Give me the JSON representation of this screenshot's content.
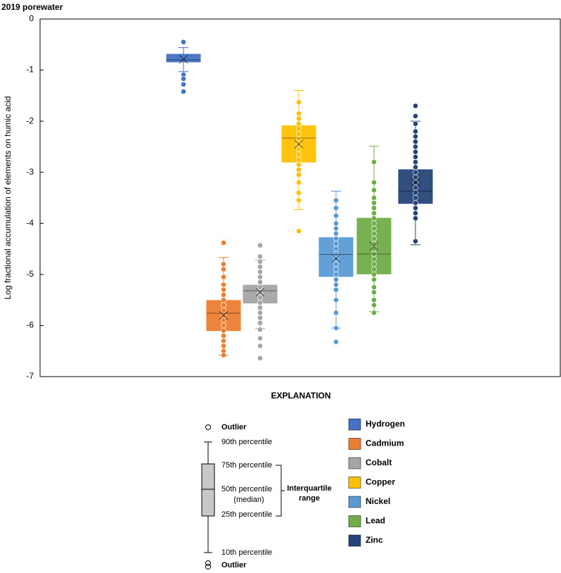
{
  "chart_data": {
    "type": "box",
    "title": "2019 porewater",
    "y_label": "Log fractional accumulation of elements on humic acid",
    "ylim": [
      -7,
      0
    ],
    "yticks": [
      0,
      -1,
      -2,
      -3,
      -4,
      -5,
      -6,
      -7
    ],
    "series": [
      {
        "name": "Hydrogen",
        "color": "#4472c4",
        "whisker_low": -1.03,
        "q1": -0.84,
        "median": -0.8,
        "q3": -0.69,
        "whisker_high": -0.56,
        "mean": -0.79,
        "points": [
          -0.45,
          -1.09,
          -1.17,
          -1.28,
          -1.42
        ]
      },
      {
        "name": "Cadmium",
        "color": "#ed7d31",
        "whisker_low": -6.58,
        "q1": -6.1,
        "median": -5.76,
        "q3": -5.51,
        "whisker_high": -4.67,
        "mean": -5.8,
        "points": [
          -4.38,
          -4.8,
          -4.9,
          -5.05,
          -5.2,
          -5.3,
          -5.4,
          -5.5,
          -5.6,
          -5.7,
          -5.8,
          -5.9,
          -6.0,
          -6.1,
          -6.2,
          -6.3,
          -6.4,
          -6.5,
          -6.58
        ]
      },
      {
        "name": "Cobalt",
        "color": "#a5a5a5",
        "whisker_low": -6.06,
        "q1": -5.56,
        "median": -5.32,
        "q3": -5.21,
        "whisker_high": -4.72,
        "mean": -5.35,
        "points": [
          -4.43,
          -4.65,
          -4.75,
          -4.85,
          -4.95,
          -5.05,
          -5.15,
          -5.25,
          -5.35,
          -5.45,
          -5.55,
          -5.65,
          -5.75,
          -5.85,
          -5.95,
          -6.08,
          -6.25,
          -6.4,
          -6.64
        ]
      },
      {
        "name": "Copper",
        "color": "#ffc000",
        "whisker_low": -3.73,
        "q1": -2.8,
        "median": -2.33,
        "q3": -2.09,
        "whisker_high": -1.4,
        "mean": -2.45,
        "points": [
          -1.63,
          -1.85,
          -1.95,
          -2.05,
          -2.15,
          -2.25,
          -2.35,
          -2.45,
          -2.55,
          -2.65,
          -2.75,
          -2.85,
          -2.95,
          -3.05,
          -3.2,
          -3.4,
          -3.55,
          -4.15
        ]
      },
      {
        "name": "Nickel",
        "color": "#5b9bd5",
        "whisker_low": -6.05,
        "q1": -5.04,
        "median": -4.61,
        "q3": -4.28,
        "whisker_high": -3.37,
        "mean": -4.68,
        "points": [
          -3.55,
          -3.7,
          -3.85,
          -4.0,
          -4.1,
          -4.2,
          -4.3,
          -4.4,
          -4.5,
          -4.6,
          -4.7,
          -4.8,
          -4.9,
          -5.0,
          -5.1,
          -5.2,
          -5.3,
          -5.5,
          -5.75,
          -6.05,
          -6.32
        ]
      },
      {
        "name": "Lead",
        "color": "#70ad47",
        "whisker_low": -5.73,
        "q1": -4.99,
        "median": -4.6,
        "q3": -3.9,
        "whisker_high": -2.49,
        "mean": -4.45,
        "points": [
          -2.8,
          -3.2,
          -3.35,
          -3.5,
          -3.6,
          -3.7,
          -3.8,
          -3.9,
          -4.0,
          -4.1,
          -4.2,
          -4.3,
          -4.4,
          -4.5,
          -4.6,
          -4.7,
          -4.8,
          -4.9,
          -5.0,
          -5.1,
          -5.25,
          -5.35,
          -5.5,
          -5.6,
          -5.75
        ]
      },
      {
        "name": "Zinc",
        "color": "#264478",
        "whisker_low": -4.42,
        "q1": -3.61,
        "median": -3.37,
        "q3": -2.95,
        "whisker_high": -2.0,
        "mean": -3.2,
        "points": [
          -1.7,
          -1.9,
          -2.05,
          -2.2,
          -2.3,
          -2.4,
          -2.5,
          -2.6,
          -2.7,
          -2.8,
          -2.9,
          -3.0,
          -3.1,
          -3.2,
          -3.3,
          -3.4,
          -3.5,
          -3.6,
          -3.7,
          -3.8,
          -3.9,
          -4.35
        ]
      }
    ],
    "explanation": {
      "title": "EXPLANATION",
      "outlier_top": "Outlier",
      "p90": "90th percentile",
      "p75": "75th percentile",
      "p50": "50th percentile",
      "median": "(median)",
      "p25": "25th percentile",
      "p10": "10th percentile",
      "outlier_bottom": "Outlier",
      "iqr_1": "Interquartile",
      "iqr_2": "range"
    }
  }
}
